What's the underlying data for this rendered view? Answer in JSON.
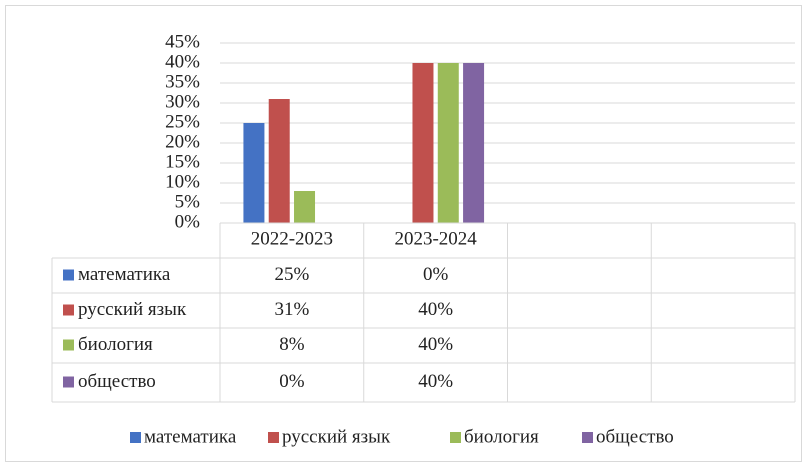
{
  "chart_data": {
    "type": "bar",
    "categories": [
      "2022-2023",
      "2023-2024",
      null,
      null
    ],
    "series": [
      {
        "name": "математика",
        "color": "#4472c4",
        "values": [
          25,
          0,
          null,
          null
        ],
        "value_labels": [
          "25%",
          "0%",
          null,
          null
        ]
      },
      {
        "name": "русский язык",
        "color": "#c0504d",
        "values": [
          31,
          40,
          null,
          null
        ],
        "value_labels": [
          "31%",
          "40%",
          null,
          null
        ]
      },
      {
        "name": "биология",
        "color": "#9bbb59",
        "values": [
          8,
          40,
          null,
          null
        ],
        "value_labels": [
          "8%",
          "40%",
          null,
          null
        ]
      },
      {
        "name": "общество",
        "color": "#8064a2",
        "values": [
          0,
          40,
          null,
          null
        ],
        "value_labels": [
          "0%",
          "40%",
          null,
          null
        ]
      }
    ],
    "ylim": [
      0,
      45
    ],
    "yticks": [
      {
        "value": 0,
        "label": "0%"
      },
      {
        "value": 5,
        "label": "5%"
      },
      {
        "value": 10,
        "label": "10%"
      },
      {
        "value": 15,
        "label": "15%"
      },
      {
        "value": 20,
        "label": "20%"
      },
      {
        "value": 25,
        "label": "25%"
      },
      {
        "value": 30,
        "label": "30%"
      },
      {
        "value": 35,
        "label": "35%"
      },
      {
        "value": 40,
        "label": "40%"
      },
      {
        "value": 45,
        "label": "45%"
      }
    ],
    "grid": true,
    "legend": "bottom"
  }
}
